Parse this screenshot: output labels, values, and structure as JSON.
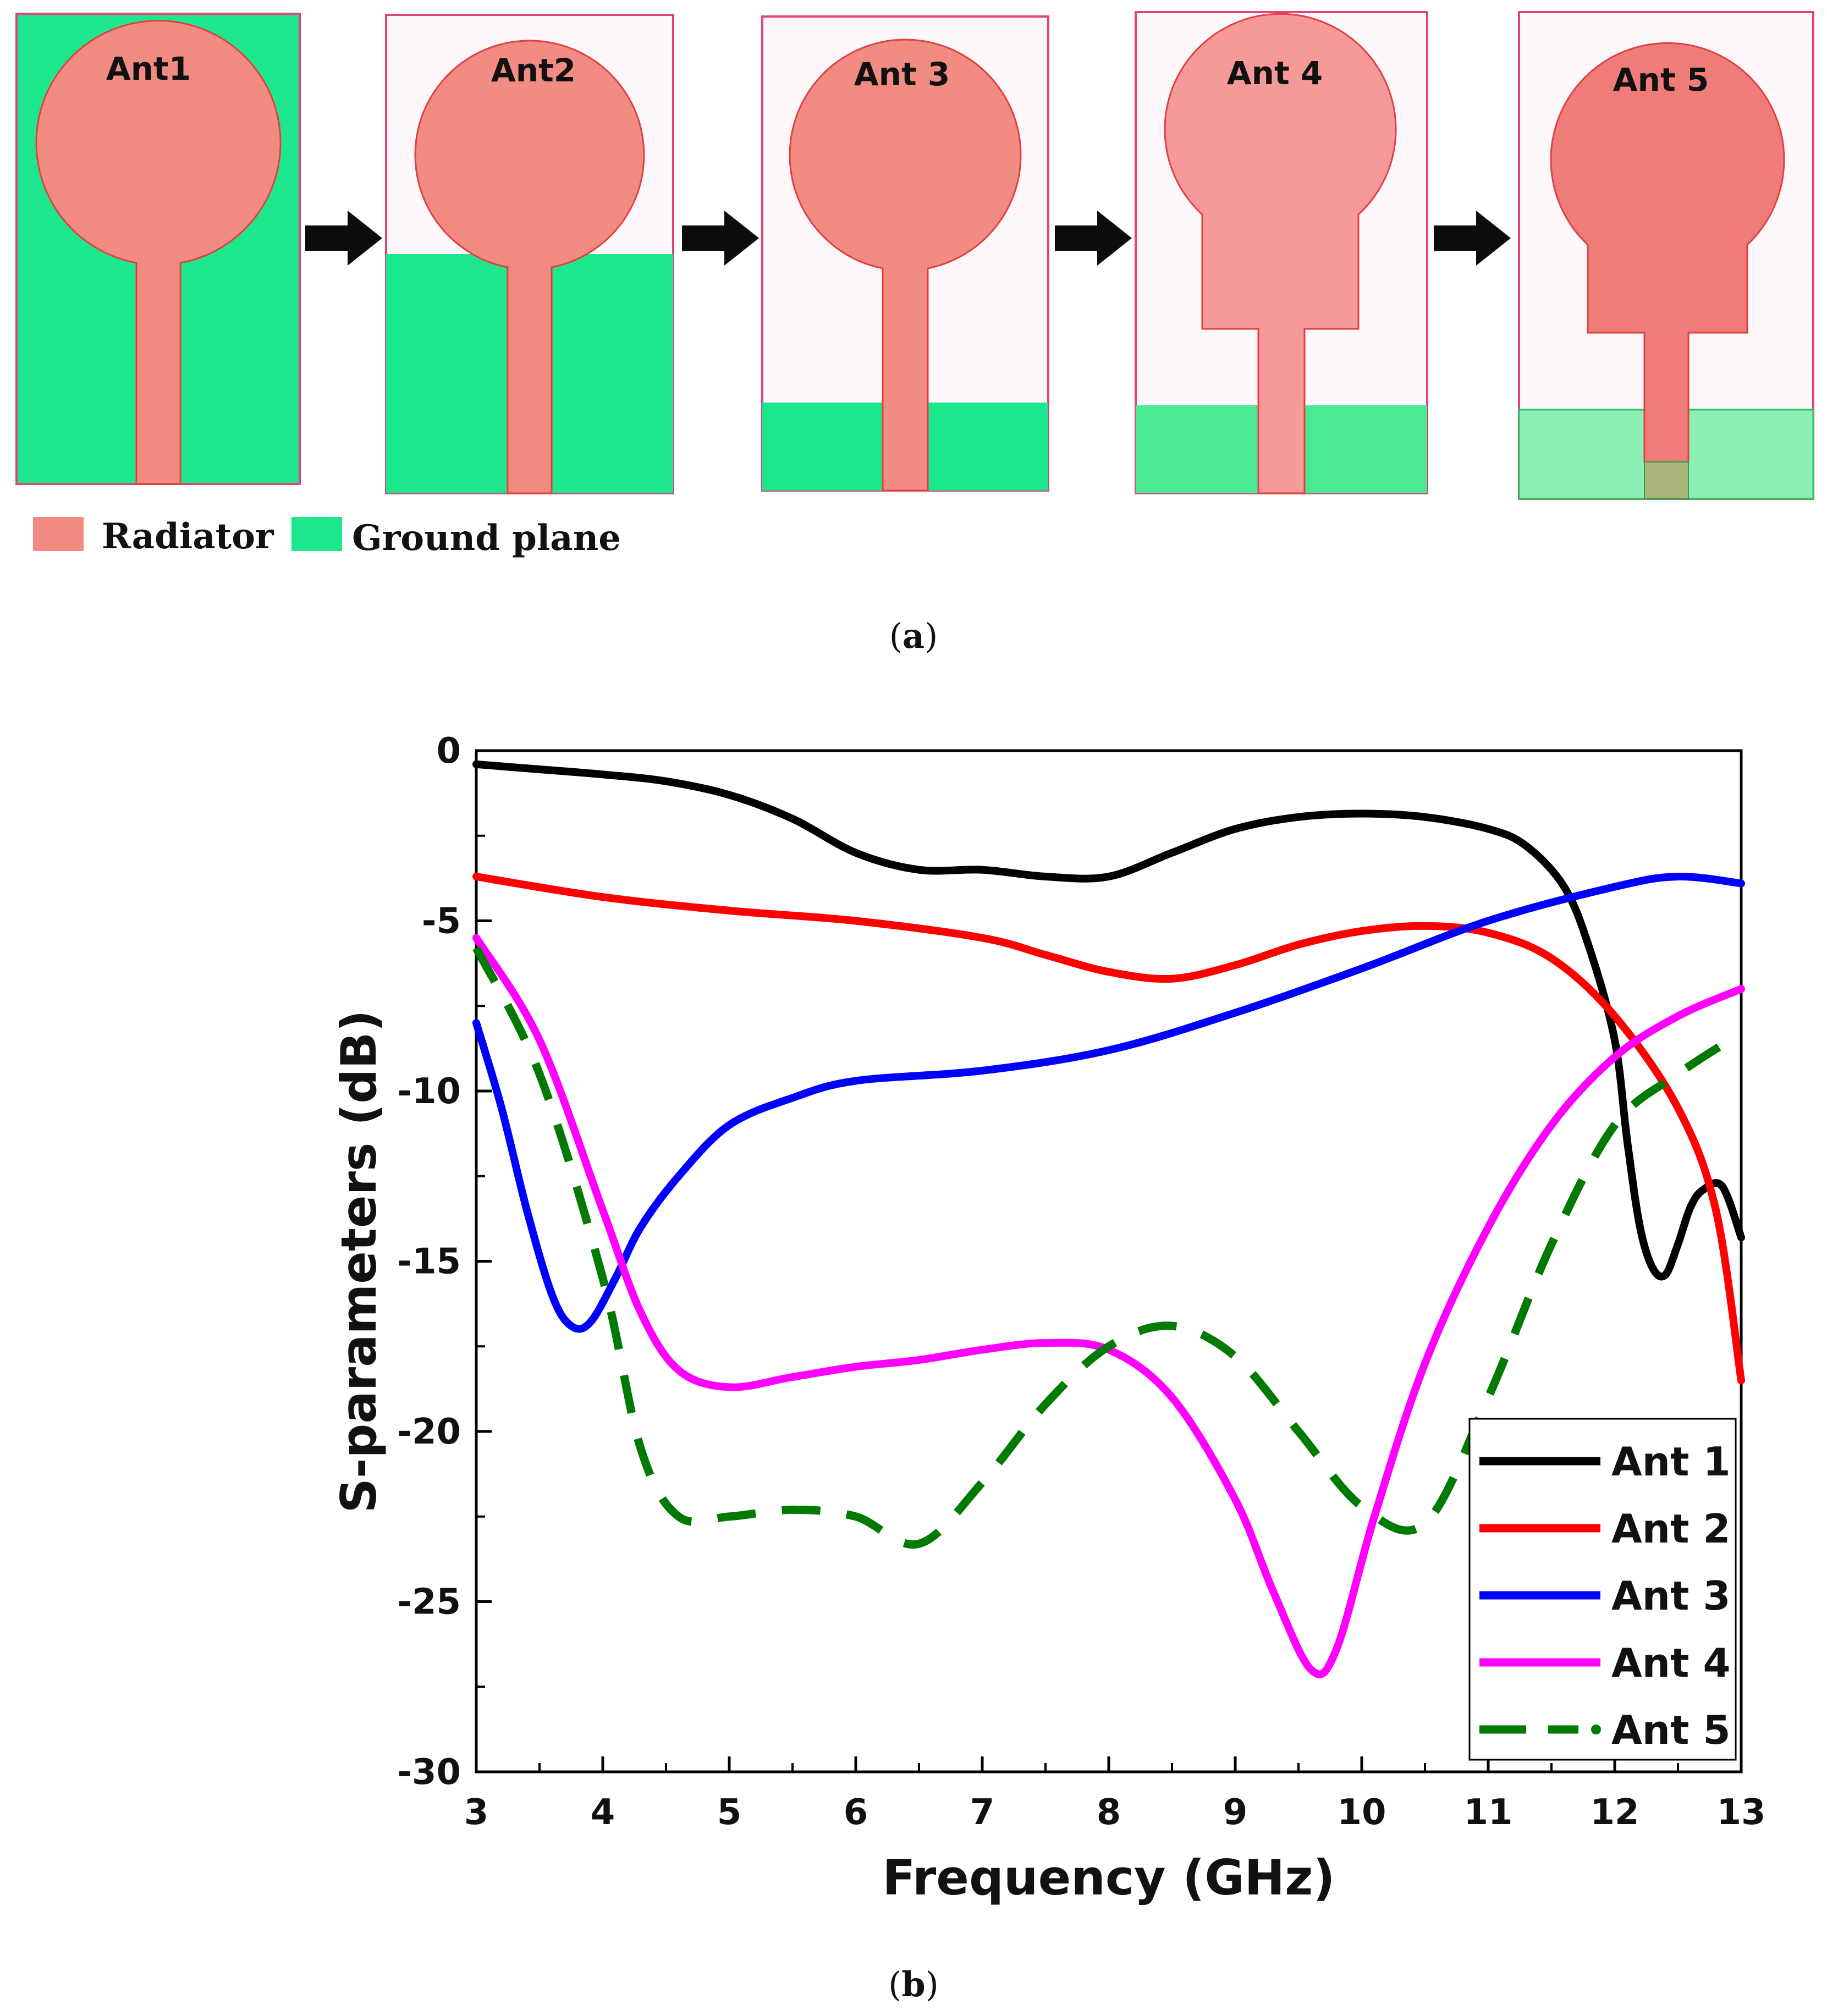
{
  "panel_a": {
    "antennas": [
      {
        "label": "Ant1"
      },
      {
        "label": "Ant2"
      },
      {
        "label": "Ant 3"
      },
      {
        "label": "Ant 4"
      },
      {
        "label": "Ant 5"
      }
    ],
    "legend": {
      "radiator": "Radiator",
      "ground": "Ground plane"
    },
    "caption_open": "(",
    "caption_letter": "a",
    "caption_close": ")",
    "colors": {
      "radiator": "#f28b82",
      "ground": "#1de78c",
      "border": "#e0457a"
    }
  },
  "chart_data": {
    "type": "line",
    "title": "",
    "xlabel": "Frequency (GHz)",
    "ylabel": "S-parameters (dB)",
    "xlim": [
      3,
      13
    ],
    "ylim": [
      -30,
      0
    ],
    "xticks": [
      "3",
      "4",
      "5",
      "6",
      "7",
      "8",
      "9",
      "10",
      "11",
      "12",
      "13"
    ],
    "yticks": [
      "0",
      "-5",
      "-10",
      "-15",
      "-20",
      "-25",
      "-30"
    ],
    "legend_position": "bottom-right",
    "series": [
      {
        "name": "Ant 1",
        "color": "#000000",
        "dash": "solid",
        "x": [
          3,
          3.5,
          4,
          4.5,
          5,
          5.5,
          6,
          6.5,
          7,
          7.5,
          8,
          8.5,
          9,
          9.5,
          10,
          10.5,
          11,
          11.3,
          11.6,
          11.8,
          12.0,
          12.1,
          12.2,
          12.3,
          12.4,
          12.5,
          12.6,
          12.7,
          12.85,
          13
        ],
        "y": [
          -0.4,
          -0.55,
          -0.7,
          -0.9,
          -1.3,
          -2.0,
          -3.0,
          -3.5,
          -3.5,
          -3.7,
          -3.7,
          -3.0,
          -2.3,
          -1.95,
          -1.85,
          -1.95,
          -2.3,
          -2.8,
          -4.0,
          -5.8,
          -8.5,
          -11.5,
          -14.0,
          -15.2,
          -15.4,
          -14.5,
          -13.4,
          -12.9,
          -12.8,
          -14.3
        ]
      },
      {
        "name": "Ant 2",
        "color": "#ff0000",
        "dash": "solid",
        "x": [
          3,
          4,
          5,
          6,
          7,
          7.5,
          8,
          8.5,
          9,
          9.5,
          10,
          10.5,
          11,
          11.5,
          12,
          12.5,
          12.8,
          13
        ],
        "y": [
          -3.7,
          -4.3,
          -4.7,
          -5.0,
          -5.5,
          -6.0,
          -6.5,
          -6.7,
          -6.3,
          -5.7,
          -5.3,
          -5.15,
          -5.35,
          -6.1,
          -7.8,
          -10.5,
          -13.5,
          -18.5
        ]
      },
      {
        "name": "Ant 3",
        "color": "#0000ff",
        "dash": "solid",
        "x": [
          3,
          3.2,
          3.4,
          3.6,
          3.75,
          3.9,
          4.1,
          4.3,
          4.6,
          5,
          5.5,
          6,
          7,
          8,
          9,
          10,
          11,
          12,
          12.5,
          13
        ],
        "y": [
          -8.0,
          -10.5,
          -13.5,
          -16.0,
          -16.9,
          -16.8,
          -15.5,
          -14.0,
          -12.5,
          -11.0,
          -10.2,
          -9.7,
          -9.4,
          -8.8,
          -7.7,
          -6.4,
          -5.0,
          -4.0,
          -3.7,
          -3.9
        ]
      },
      {
        "name": "Ant 4",
        "color": "#ff00ff",
        "dash": "solid",
        "x": [
          3,
          3.5,
          4,
          4.3,
          4.6,
          5,
          5.5,
          6,
          6.5,
          7,
          7.5,
          8,
          8.5,
          9,
          9.3,
          9.6,
          9.8,
          10.1,
          10.5,
          11,
          11.5,
          12,
          12.5,
          13
        ],
        "y": [
          -5.5,
          -8.5,
          -13.5,
          -16.5,
          -18.2,
          -18.7,
          -18.4,
          -18.1,
          -17.9,
          -17.6,
          -17.4,
          -17.6,
          -19.0,
          -22.0,
          -24.7,
          -27.0,
          -26.4,
          -22.5,
          -18.0,
          -14.0,
          -11.0,
          -9.0,
          -7.8,
          -7.0
        ]
      },
      {
        "name": "Ant 5",
        "color": "#007a00",
        "dash": "dashed",
        "x": [
          3,
          3.5,
          4,
          4.3,
          4.6,
          5,
          5.5,
          6,
          6.5,
          7,
          7.5,
          8,
          8.5,
          9,
          9.5,
          10,
          10.5,
          11,
          11.5,
          12,
          12.5,
          13
        ],
        "y": [
          -5.8,
          -9.5,
          -15.5,
          -20.5,
          -22.5,
          -22.5,
          -22.3,
          -22.5,
          -23.3,
          -21.5,
          -19.2,
          -17.5,
          -16.9,
          -17.8,
          -20.0,
          -22.2,
          -22.7,
          -19.0,
          -14.5,
          -11.0,
          -9.5,
          -8.3
        ]
      }
    ],
    "caption_open": "(",
    "caption_letter": "b",
    "caption_close": ")"
  }
}
